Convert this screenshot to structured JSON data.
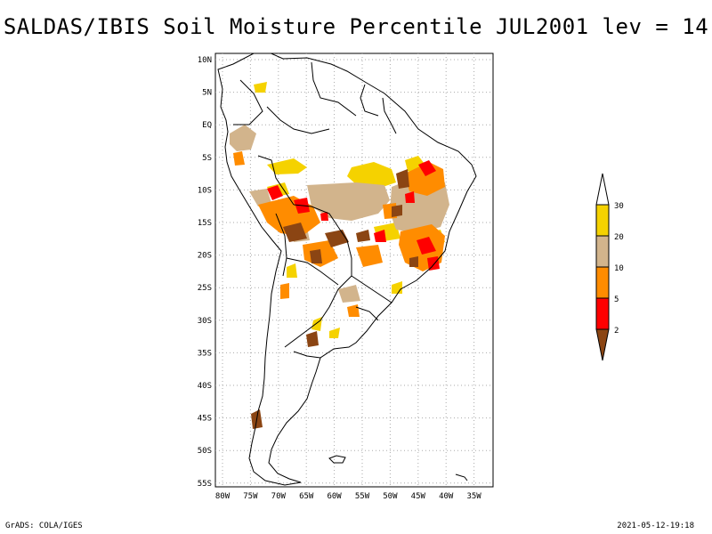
{
  "title": "SALDAS/IBIS Soil Moisture Percentile JUL2001 lev = 14",
  "map": {
    "lat_labels": [
      "10N",
      "5N",
      "EQ",
      "5S",
      "10S",
      "15S",
      "20S",
      "25S",
      "30S",
      "35S",
      "40S",
      "45S",
      "50S",
      "55S"
    ],
    "lon_labels": [
      "80W",
      "75W",
      "70W",
      "65W",
      "60W",
      "55W",
      "50W",
      "45W",
      "40W",
      "35W"
    ],
    "grid": "dotted"
  },
  "legend": {
    "labels": [
      "30",
      "20",
      "10",
      "5",
      "2"
    ],
    "colors": {
      "above_30": "#ffffff",
      "20_30": "#f5d200",
      "10_20": "#d2b48c",
      "5_10": "#ff8c00",
      "2_5": "#ff0000",
      "below_2": "#8b4513"
    }
  },
  "footer": {
    "left": "GrADS: COLA/IGES",
    "right": "2021-05-12-19:18"
  }
}
